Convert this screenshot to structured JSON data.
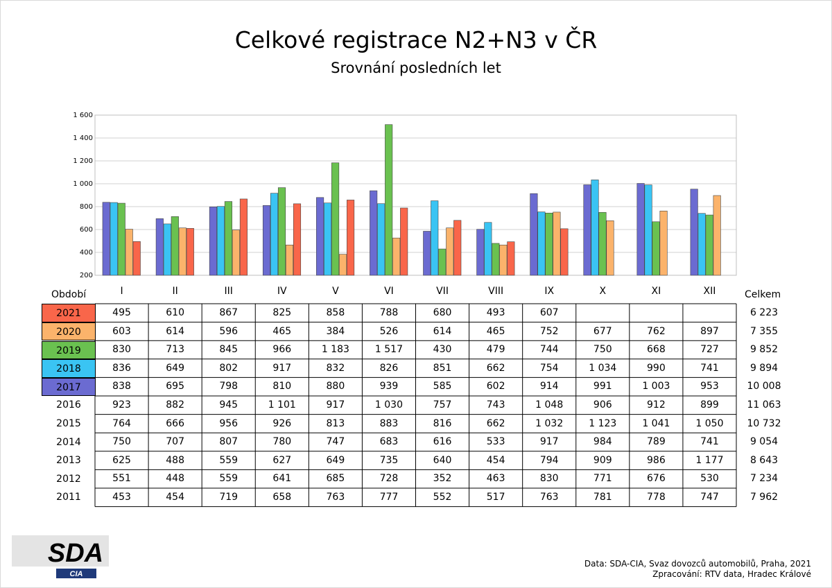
{
  "title": "Celkové registrace N2+N3 v ČR",
  "subtitle": "Srovnání posledních let",
  "period_label": "Období",
  "total_label": "Celkem",
  "source": {
    "line1": "Data: SDA-CIA, Svaz dovozců automobilů, Praha, 2021",
    "line2": "Zpracování: RTV data, Hradec Králové"
  },
  "logo": {
    "main": "SDA",
    "sub": "CIA"
  },
  "chart_data": {
    "type": "bar",
    "categories": [
      "I",
      "II",
      "III",
      "IV",
      "V",
      "VI",
      "VII",
      "VIII",
      "IX",
      "X",
      "XI",
      "XII"
    ],
    "ylim": [
      200,
      1600
    ],
    "y_ticks": [
      "200",
      "400",
      "600",
      "800",
      "1 000",
      "1 200",
      "1 400",
      "1 600"
    ],
    "grid": true,
    "series": [
      {
        "name": "2017",
        "color": "#6b6bd1",
        "values": [
          838,
          695,
          798,
          810,
          880,
          939,
          585,
          602,
          914,
          991,
          1003,
          953
        ]
      },
      {
        "name": "2018",
        "color": "#3ac4f3",
        "values": [
          836,
          649,
          802,
          917,
          832,
          826,
          851,
          662,
          754,
          1034,
          990,
          741
        ]
      },
      {
        "name": "2019",
        "color": "#6ac150",
        "values": [
          830,
          713,
          845,
          966,
          1183,
          1517,
          430,
          479,
          744,
          750,
          668,
          727
        ]
      },
      {
        "name": "2020",
        "color": "#fbb36b",
        "values": [
          603,
          614,
          596,
          465,
          384,
          526,
          614,
          465,
          752,
          677,
          762,
          897
        ]
      },
      {
        "name": "2021",
        "color": "#f9664a",
        "values": [
          495,
          610,
          867,
          825,
          858,
          788,
          680,
          493,
          607,
          null,
          null,
          null
        ]
      }
    ]
  },
  "table": {
    "rows": [
      {
        "year": "2021",
        "color": "#f9664a",
        "values": [
          "495",
          "610",
          "867",
          "825",
          "858",
          "788",
          "680",
          "493",
          "607",
          "",
          "",
          ""
        ],
        "total": "6 223"
      },
      {
        "year": "2020",
        "color": "#fbb36b",
        "values": [
          "603",
          "614",
          "596",
          "465",
          "384",
          "526",
          "614",
          "465",
          "752",
          "677",
          "762",
          "897"
        ],
        "total": "7 355"
      },
      {
        "year": "2019",
        "color": "#6ac150",
        "values": [
          "830",
          "713",
          "845",
          "966",
          "1 183",
          "1 517",
          "430",
          "479",
          "744",
          "750",
          "668",
          "727"
        ],
        "total": "9 852"
      },
      {
        "year": "2018",
        "color": "#3ac4f3",
        "values": [
          "836",
          "649",
          "802",
          "917",
          "832",
          "826",
          "851",
          "662",
          "754",
          "1 034",
          "990",
          "741"
        ],
        "total": "9 894"
      },
      {
        "year": "2017",
        "color": "#6b6bd1",
        "values": [
          "838",
          "695",
          "798",
          "810",
          "880",
          "939",
          "585",
          "602",
          "914",
          "991",
          "1 003",
          "953"
        ],
        "total": "10 008"
      },
      {
        "year": "2016",
        "color": "",
        "values": [
          "923",
          "882",
          "945",
          "1 101",
          "917",
          "1 030",
          "757",
          "743",
          "1 048",
          "906",
          "912",
          "899"
        ],
        "total": "11 063"
      },
      {
        "year": "2015",
        "color": "",
        "values": [
          "764",
          "666",
          "956",
          "926",
          "813",
          "883",
          "816",
          "662",
          "1 032",
          "1 123",
          "1 041",
          "1 050"
        ],
        "total": "10 732"
      },
      {
        "year": "2014",
        "color": "",
        "values": [
          "750",
          "707",
          "807",
          "780",
          "747",
          "683",
          "616",
          "533",
          "917",
          "984",
          "789",
          "741"
        ],
        "total": "9 054"
      },
      {
        "year": "2013",
        "color": "",
        "values": [
          "625",
          "488",
          "559",
          "627",
          "649",
          "735",
          "640",
          "454",
          "794",
          "909",
          "986",
          "1 177"
        ],
        "total": "8 643"
      },
      {
        "year": "2012",
        "color": "",
        "values": [
          "551",
          "448",
          "559",
          "641",
          "685",
          "728",
          "352",
          "463",
          "830",
          "771",
          "676",
          "530"
        ],
        "total": "7 234"
      },
      {
        "year": "2011",
        "color": "",
        "values": [
          "453",
          "454",
          "719",
          "658",
          "763",
          "777",
          "552",
          "517",
          "763",
          "781",
          "778",
          "747"
        ],
        "total": "7 962"
      }
    ]
  }
}
